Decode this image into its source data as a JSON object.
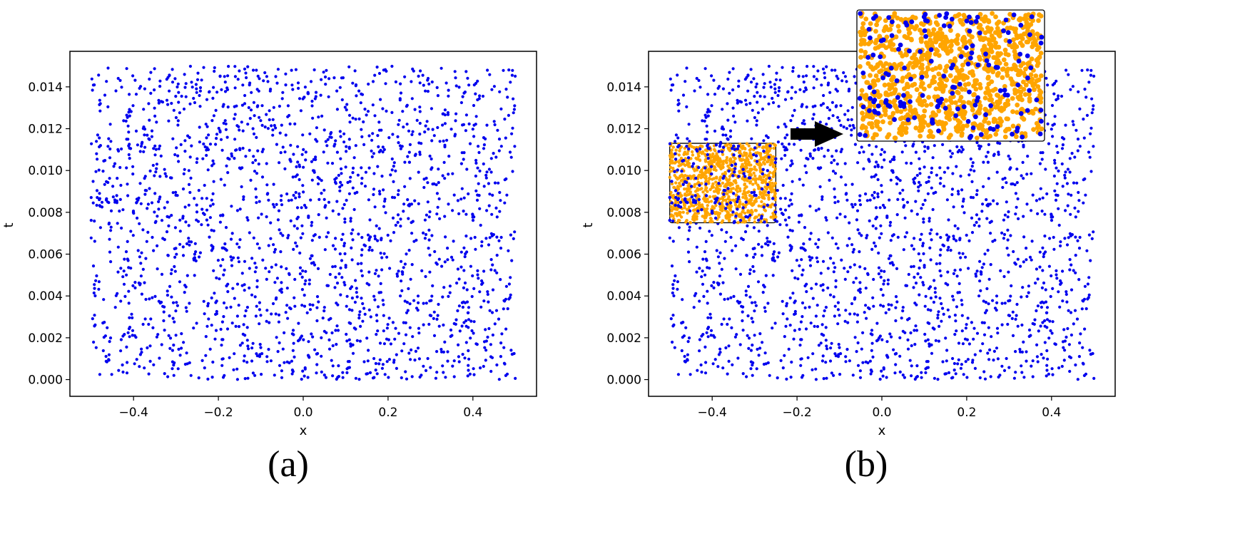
{
  "chart_data": [
    {
      "type": "scatter",
      "panel_label": "(a)",
      "xlabel": "x",
      "ylabel": "t",
      "xlim": [
        -0.55,
        0.55
      ],
      "ylim": [
        -0.0008,
        0.0157
      ],
      "xticks": [
        -0.4,
        -0.2,
        0.0,
        0.2,
        0.4
      ],
      "xtick_labels": [
        "−0.4",
        "−0.2",
        "0.0",
        "0.2",
        "0.4"
      ],
      "yticks": [
        0.0,
        0.002,
        0.004,
        0.006,
        0.008,
        0.01,
        0.012,
        0.014
      ],
      "ytick_labels": [
        "0.000",
        "0.002",
        "0.004",
        "0.006",
        "0.008",
        "0.010",
        "0.012",
        "0.014"
      ],
      "grid": false,
      "series": [
        {
          "color": "#0000ee",
          "points_note": "about 2000 points, uniform random over x in [-0.5, 0.5], t in [0, 0.015]",
          "count": 2000,
          "x_range": [
            -0.5,
            0.5
          ],
          "t_range": [
            0.0,
            0.015
          ]
        }
      ]
    },
    {
      "type": "scatter",
      "panel_label": "(b)",
      "xlabel": "x",
      "ylabel": "t",
      "xlim": [
        -0.55,
        0.55
      ],
      "ylim": [
        -0.0008,
        0.0157
      ],
      "xticks": [
        -0.4,
        -0.2,
        0.0,
        0.2,
        0.4
      ],
      "xtick_labels": [
        "−0.4",
        "−0.2",
        "0.0",
        "0.2",
        "0.4"
      ],
      "yticks": [
        0.0,
        0.002,
        0.004,
        0.006,
        0.008,
        0.01,
        0.012,
        0.014
      ],
      "ytick_labels": [
        "0.000",
        "0.002",
        "0.004",
        "0.006",
        "0.008",
        "0.010",
        "0.012",
        "0.014"
      ],
      "grid": false,
      "series": [
        {
          "color": "#0000ee",
          "count": 2000,
          "x_range": [
            -0.5,
            0.5
          ],
          "t_range": [
            0.0,
            0.015
          ]
        },
        {
          "color": "#ffa500",
          "count": 1000,
          "region": "inset only",
          "x_range": [
            -0.5,
            -0.25
          ],
          "t_range": [
            0.0075,
            0.0113
          ]
        }
      ],
      "inset": {
        "x_range": [
          -0.5,
          -0.25
        ],
        "t_range": [
          0.0075,
          0.0113
        ],
        "colors": [
          "#ffa500",
          "#0000ee"
        ],
        "arrow": "black, pointing right toward magnified view"
      }
    }
  ]
}
